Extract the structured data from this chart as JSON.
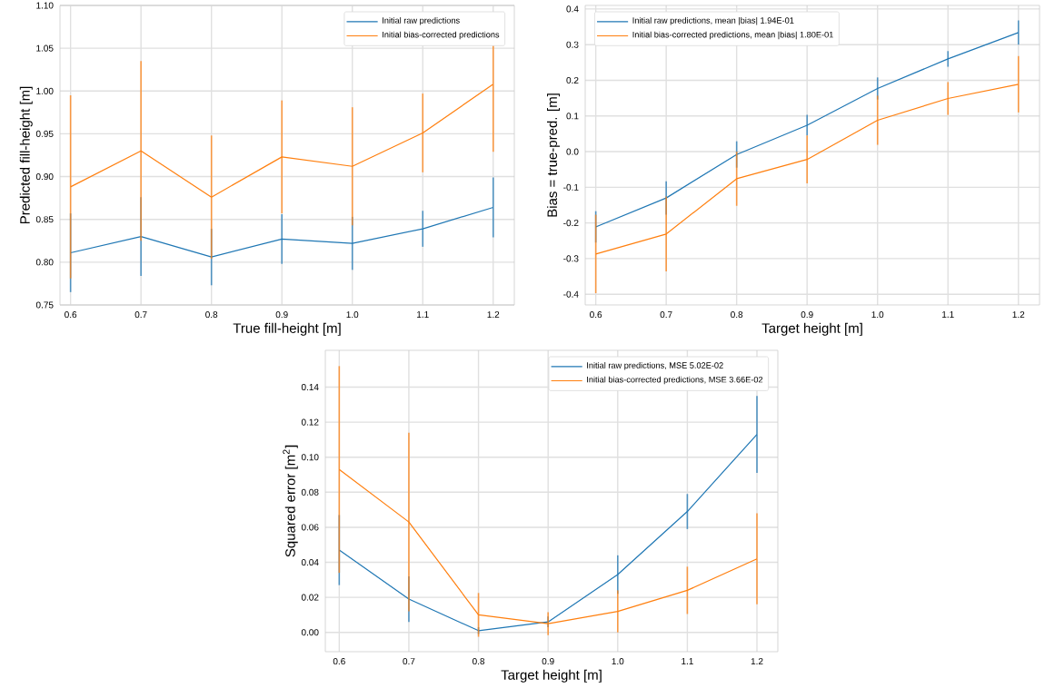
{
  "chart_data": [
    {
      "type": "line",
      "xlabel": "True fill-height [m]",
      "ylabel": "Predicted fill-height [m]",
      "x": [
        0.6,
        0.7,
        0.8,
        0.9,
        1.0,
        1.1,
        1.2
      ],
      "xlim": [
        0.585,
        1.23
      ],
      "ylim": [
        0.75,
        1.1
      ],
      "xticks": [
        {
          "value": 0.6,
          "label": "0.6"
        },
        {
          "value": 0.7,
          "label": "0.7"
        },
        {
          "value": 0.8,
          "label": "0.8"
        },
        {
          "value": 0.9,
          "label": "0.9"
        },
        {
          "value": 1.0,
          "label": "1.0"
        },
        {
          "value": 1.1,
          "label": "1.1"
        },
        {
          "value": 1.2,
          "label": "1.2"
        }
      ],
      "yticks": [
        {
          "value": 0.75,
          "label": "0.75"
        },
        {
          "value": 0.8,
          "label": "0.80"
        },
        {
          "value": 0.85,
          "label": "0.85"
        },
        {
          "value": 0.9,
          "label": "0.90"
        },
        {
          "value": 0.95,
          "label": "0.95"
        },
        {
          "value": 1.0,
          "label": "1.00"
        },
        {
          "value": 1.05,
          "label": "1.05"
        },
        {
          "value": 1.1,
          "label": "1.10"
        }
      ],
      "grid": true,
      "legend": "top right",
      "series": [
        {
          "name": "Initial raw predictions",
          "color": "#1f77b4",
          "values": [
            0.811,
            0.83,
            0.806,
            0.827,
            0.822,
            0.839,
            0.864
          ],
          "errors": [
            0.046,
            0.046,
            0.033,
            0.029,
            0.031,
            0.021,
            0.035
          ]
        },
        {
          "name": "Initial bias-corrected predictions",
          "color": "#ff7f0e",
          "values": [
            0.888,
            0.93,
            0.876,
            0.923,
            0.912,
            0.951,
            1.008
          ],
          "errors": [
            0.107,
            0.105,
            0.072,
            0.066,
            0.069,
            0.046,
            0.079
          ]
        }
      ]
    },
    {
      "type": "line",
      "xlabel": "Target height [m]",
      "ylabel": "Bias = true-pred. [m]",
      "x": [
        0.6,
        0.7,
        0.8,
        0.9,
        1.0,
        1.1,
        1.2
      ],
      "xlim": [
        0.585,
        1.23
      ],
      "ylim": [
        -0.43,
        0.41
      ],
      "xticks": [
        {
          "value": 0.6,
          "label": "0.6"
        },
        {
          "value": 0.7,
          "label": "0.7"
        },
        {
          "value": 0.8,
          "label": "0.8"
        },
        {
          "value": 0.9,
          "label": "0.9"
        },
        {
          "value": 1.0,
          "label": "1.0"
        },
        {
          "value": 1.1,
          "label": "1.1"
        },
        {
          "value": 1.2,
          "label": "1.2"
        }
      ],
      "yticks": [
        {
          "value": -0.4,
          "label": "-0.4"
        },
        {
          "value": -0.3,
          "label": "-0.3"
        },
        {
          "value": -0.2,
          "label": "-0.2"
        },
        {
          "value": -0.1,
          "label": "-0.1"
        },
        {
          "value": 0.0,
          "label": "0.0"
        },
        {
          "value": 0.1,
          "label": "0.1"
        },
        {
          "value": 0.2,
          "label": "0.2"
        },
        {
          "value": 0.3,
          "label": "0.3"
        },
        {
          "value": 0.4,
          "label": "0.4"
        }
      ],
      "grid": true,
      "legend": "top left",
      "series": [
        {
          "name": "Initial raw predictions, mean |bias| 1.94E-01",
          "color": "#1f77b4",
          "values": [
            -0.211,
            -0.13,
            -0.008,
            0.074,
            0.177,
            0.26,
            0.334
          ],
          "errors": [
            0.044,
            0.047,
            0.037,
            0.029,
            0.031,
            0.022,
            0.034
          ]
        },
        {
          "name": "Initial bias-corrected predictions, mean |bias| 1.80E-01",
          "color": "#ff7f0e",
          "values": [
            -0.287,
            -0.231,
            -0.076,
            -0.022,
            0.088,
            0.149,
            0.189
          ],
          "errors": [
            0.11,
            0.105,
            0.076,
            0.067,
            0.069,
            0.046,
            0.079
          ]
        }
      ]
    },
    {
      "type": "line",
      "xlabel": "Target height [m]",
      "ylabel": "Squared error [m$^{2}$]",
      "x": [
        0.6,
        0.7,
        0.8,
        0.9,
        1.0,
        1.1,
        1.2
      ],
      "xlim": [
        0.58,
        1.23
      ],
      "ylim": [
        -0.011,
        0.161
      ],
      "xticks": [
        {
          "value": 0.6,
          "label": "0.6"
        },
        {
          "value": 0.7,
          "label": "0.7"
        },
        {
          "value": 0.8,
          "label": "0.8"
        },
        {
          "value": 0.9,
          "label": "0.9"
        },
        {
          "value": 1.0,
          "label": "1.0"
        },
        {
          "value": 1.1,
          "label": "1.1"
        },
        {
          "value": 1.2,
          "label": "1.2"
        }
      ],
      "yticks": [
        {
          "value": 0.0,
          "label": "0.00"
        },
        {
          "value": 0.02,
          "label": "0.02"
        },
        {
          "value": 0.04,
          "label": "0.04"
        },
        {
          "value": 0.06,
          "label": "0.06"
        },
        {
          "value": 0.08,
          "label": "0.08"
        },
        {
          "value": 0.1,
          "label": "0.10"
        },
        {
          "value": 0.12,
          "label": "0.12"
        },
        {
          "value": 0.14,
          "label": "0.14"
        }
      ],
      "grid": true,
      "legend": "top right",
      "series": [
        {
          "name": "Initial raw predictions, MSE 5.02E-02",
          "color": "#1f77b4",
          "values": [
            0.047,
            0.019,
            0.001,
            0.006,
            0.033,
            0.069,
            0.113
          ],
          "errors": [
            0.02,
            0.013,
            0.002,
            0.003,
            0.011,
            0.01,
            0.022
          ]
        },
        {
          "name": "Initial bias-corrected predictions, MSE 3.66E-02",
          "color": "#ff7f0e",
          "values": [
            0.093,
            0.063,
            0.01,
            0.005,
            0.012,
            0.024,
            0.042
          ],
          "errors": [
            0.059,
            0.051,
            0.0125,
            0.0065,
            0.012,
            0.0135,
            0.026
          ]
        }
      ]
    }
  ]
}
